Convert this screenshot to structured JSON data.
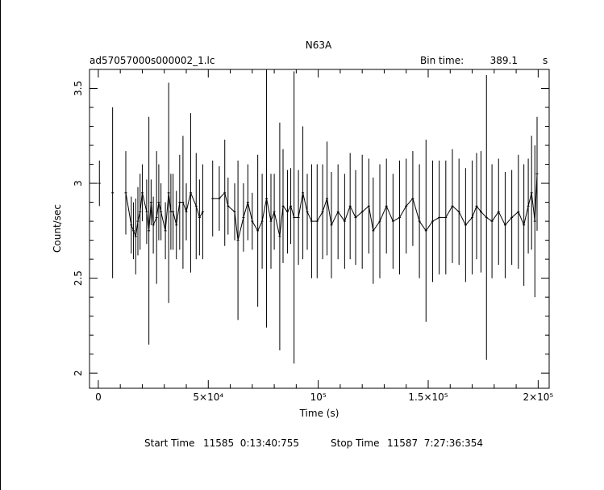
{
  "chart_data": {
    "type": "line",
    "title": "N63A",
    "file_label": "ad57057000s000002_1.lc",
    "bin_time_label": "Bin time:",
    "bin_time_value": "389.1",
    "bin_time_unit": "s",
    "xlabel": "Time (s)",
    "ylabel": "Count/sec",
    "xlim": [
      -4000,
      205000
    ],
    "ylim": [
      1.92,
      3.6
    ],
    "x_ticks": [
      {
        "value": 0,
        "label": "0"
      },
      {
        "value": 50000,
        "label": "5×10⁴"
      },
      {
        "value": 100000,
        "label": "10⁵"
      },
      {
        "value": 150000,
        "label": "1.5×10⁵"
      },
      {
        "value": 200000,
        "label": "2×10⁵"
      }
    ],
    "y_ticks": [
      {
        "value": 2.0,
        "label": "2"
      },
      {
        "value": 2.5,
        "label": "2.5"
      },
      {
        "value": 3.0,
        "label": "3"
      },
      {
        "value": 3.5,
        "label": "3.5"
      }
    ],
    "grid": false,
    "legend": "none",
    "series": [
      {
        "x": [
          500,
          6500,
          12500,
          15000,
          16000,
          17000,
          18000,
          19000,
          20000,
          22000,
          23000,
          24000,
          25000,
          26500,
          27500,
          28500,
          30500,
          32000,
          33000,
          34000,
          35500,
          37000,
          38500,
          40000,
          42000,
          44500,
          46000,
          47500,
          52000,
          55000,
          57500,
          59000,
          62000,
          63500,
          66000,
          68000,
          70000,
          72500,
          74500,
          76500,
          78500,
          80000,
          82500,
          84000,
          86000,
          87500,
          89000,
          91000,
          93000,
          95000,
          97000,
          99500,
          102000,
          104000,
          106000,
          109000,
          112000,
          114500,
          117000,
          120000,
          123000,
          125000,
          128000,
          131000,
          134000,
          137000,
          140000,
          143000,
          146000,
          149000,
          152000,
          155000,
          158000,
          161000,
          164000,
          167000,
          170000,
          172000,
          174000,
          176500,
          179000,
          182000,
          185000,
          188000,
          191000,
          193500,
          195500,
          197000,
          198500,
          199500
        ],
        "y": [
          3.0,
          2.95,
          2.95,
          2.78,
          2.75,
          2.72,
          2.8,
          2.85,
          2.95,
          2.85,
          2.75,
          2.9,
          2.78,
          2.82,
          2.9,
          2.85,
          2.75,
          2.95,
          2.85,
          2.85,
          2.78,
          2.9,
          2.9,
          2.85,
          2.95,
          2.88,
          2.82,
          2.85,
          2.92,
          2.92,
          2.95,
          2.88,
          2.85,
          2.7,
          2.82,
          2.9,
          2.8,
          2.75,
          2.8,
          2.92,
          2.8,
          2.85,
          2.72,
          2.88,
          2.85,
          2.88,
          2.82,
          2.82,
          2.95,
          2.85,
          2.8,
          2.8,
          2.85,
          2.92,
          2.78,
          2.85,
          2.8,
          2.88,
          2.82,
          2.85,
          2.88,
          2.75,
          2.8,
          2.88,
          2.8,
          2.82,
          2.88,
          2.92,
          2.8,
          2.75,
          2.8,
          2.82,
          2.82,
          2.88,
          2.85,
          2.78,
          2.82,
          2.88,
          2.85,
          2.82,
          2.8,
          2.85,
          2.78,
          2.82,
          2.85,
          2.78,
          2.88,
          2.95,
          2.8,
          3.05
        ],
        "err": [
          0.12,
          0.45,
          0.22,
          0.15,
          0.15,
          0.2,
          0.18,
          0.2,
          0.15,
          0.17,
          0.6,
          0.12,
          0.15,
          0.35,
          0.2,
          0.15,
          0.15,
          0.58,
          0.2,
          0.2,
          0.18,
          0.25,
          0.35,
          0.15,
          0.42,
          0.28,
          0.2,
          0.25,
          0.2,
          0.17,
          0.28,
          0.15,
          0.15,
          0.42,
          0.18,
          0.2,
          0.15,
          0.4,
          0.25,
          0.68,
          0.25,
          0.2,
          0.6,
          0.3,
          0.22,
          0.2,
          0.77,
          0.25,
          0.35,
          0.2,
          0.3,
          0.3,
          0.25,
          0.3,
          0.28,
          0.25,
          0.25,
          0.28,
          0.25,
          0.3,
          0.25,
          0.28,
          0.3,
          0.25,
          0.25,
          0.3,
          0.25,
          0.25,
          0.3,
          0.48,
          0.32,
          0.3,
          0.3,
          0.3,
          0.28,
          0.3,
          0.3,
          0.28,
          0.32,
          0.75,
          0.3,
          0.28,
          0.28,
          0.25,
          0.3,
          0.32,
          0.25,
          0.3,
          0.4,
          0.3
        ]
      }
    ]
  },
  "footer": {
    "start_label": "Start Time",
    "start_value": "11585  0:13:40:755",
    "stop_label": "Stop Time",
    "stop_value": "11587  7:27:36:354"
  }
}
